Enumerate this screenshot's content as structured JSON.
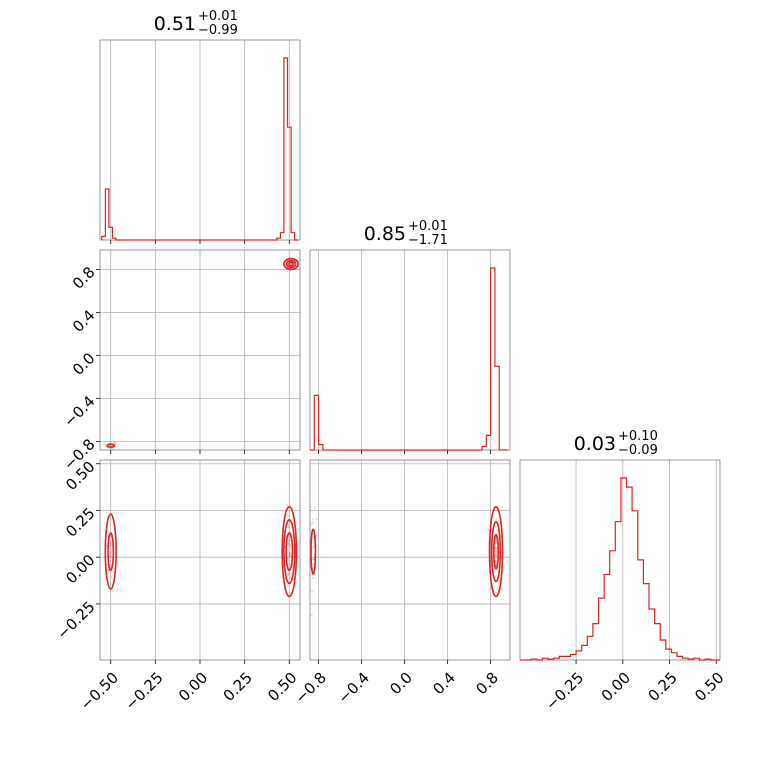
{
  "chart_data": {
    "type": "corner",
    "color": "#d62728",
    "grid": true,
    "parameters": [
      {
        "title_value": "0.51",
        "title_plus": "+0.01",
        "title_minus": "−0.99",
        "range": [
          -0.56,
          0.56
        ]
      },
      {
        "title_value": "0.85",
        "title_plus": "+0.01",
        "title_minus": "−1.71",
        "range": [
          -0.88,
          0.98
        ]
      },
      {
        "title_value": "0.03",
        "title_plus": "+0.10",
        "title_minus": "−0.09",
        "range": [
          -0.55,
          0.52
        ]
      }
    ],
    "axis_ticks": {
      "x0": {
        "values": [
          -0.5,
          -0.25,
          0.0,
          0.25,
          0.5
        ],
        "labels": [
          "−0.50",
          "−0.25",
          "0.00",
          "0.25",
          "0.50"
        ]
      },
      "x1": {
        "values": [
          -0.8,
          -0.4,
          0.0,
          0.4,
          0.8
        ],
        "labels": [
          "−0.8",
          "−0.4",
          "0.0",
          "0.4",
          "0.8"
        ]
      },
      "x2": {
        "values": [
          -0.25,
          0.0,
          0.25,
          0.5
        ],
        "labels": [
          "−0.25",
          "0.00",
          "0.25",
          "0.50"
        ]
      },
      "y1": {
        "values": [
          0.8,
          0.4,
          0.0,
          -0.4,
          -0.8
        ],
        "labels": [
          "0.8",
          "0.4",
          "0.0",
          "−0.4",
          "−0.8"
        ]
      },
      "y2": {
        "values": [
          0.5,
          0.25,
          0.0,
          -0.25
        ],
        "labels": [
          "0.50",
          "0.25",
          "0.00",
          "−0.25"
        ]
      }
    },
    "histograms": [
      {
        "param": 0,
        "edges": [
          -0.55,
          -0.53,
          -0.51,
          -0.49,
          -0.47,
          -0.45,
          -0.43,
          0.43,
          0.45,
          0.47,
          0.49,
          0.51,
          0.53,
          0.55
        ],
        "counts": [
          0.02,
          0.28,
          0.07,
          0.01,
          0.0,
          0.0,
          0.0,
          0.01,
          0.04,
          1.0,
          0.62,
          0.04,
          0.0
        ]
      },
      {
        "param": 1,
        "edges": [
          -0.88,
          -0.84,
          -0.8,
          -0.76,
          0.64,
          0.68,
          0.72,
          0.76,
          0.8,
          0.84,
          0.88,
          0.92,
          0.96
        ],
        "counts": [
          0.0,
          0.3,
          0.03,
          0.0,
          0.0,
          0.0,
          0.02,
          0.08,
          1.0,
          0.46,
          0.0,
          0.0
        ]
      },
      {
        "param": 2,
        "edges": [
          -0.55,
          -0.52,
          -0.49,
          -0.46,
          -0.43,
          -0.4,
          -0.37,
          -0.34,
          -0.31,
          -0.28,
          -0.25,
          -0.22,
          -0.19,
          -0.16,
          -0.13,
          -0.1,
          -0.07,
          -0.04,
          -0.01,
          0.02,
          0.05,
          0.08,
          0.11,
          0.14,
          0.17,
          0.2,
          0.23,
          0.26,
          0.29,
          0.32,
          0.35,
          0.38,
          0.41,
          0.44,
          0.47,
          0.5,
          0.52
        ],
        "counts": [
          0.0,
          0.0,
          0.005,
          0.0,
          0.01,
          0.005,
          0.01,
          0.02,
          0.02,
          0.03,
          0.05,
          0.08,
          0.13,
          0.2,
          0.34,
          0.47,
          0.6,
          0.76,
          1.0,
          0.95,
          0.82,
          0.55,
          0.42,
          0.28,
          0.2,
          0.11,
          0.06,
          0.04,
          0.02,
          0.01,
          0.005,
          0.01,
          0.0,
          0.005,
          0.0,
          0.0
        ]
      }
    ],
    "pairs": [
      {
        "x_param": 0,
        "y_param": 1,
        "clusters": [
          {
            "center": [
              0.51,
              0.85
            ],
            "spread": [
              0.018,
              0.025
            ],
            "n": 40,
            "contours": [
              [
                0.04,
                0.05
              ],
              [
                0.025,
                0.032
              ],
              [
                0.012,
                0.016
              ]
            ]
          },
          {
            "center": [
              -0.5,
              -0.84
            ],
            "spread": [
              0.015,
              0.015
            ],
            "n": 20,
            "contours": [
              [
                0.02,
                0.012
              ]
            ]
          }
        ]
      },
      {
        "x_param": 0,
        "y_param": 2,
        "clusters": [
          {
            "center": [
              0.5,
              0.03
            ],
            "spread": [
              0.015,
              0.1
            ],
            "n": 70,
            "contours": [
              [
                0.04,
                0.24
              ],
              [
                0.03,
                0.17
              ],
              [
                0.018,
                0.1
              ]
            ]
          },
          {
            "center": [
              -0.5,
              0.03
            ],
            "spread": [
              0.012,
              0.08
            ],
            "n": 35,
            "contours": [
              [
                0.03,
                0.2
              ],
              [
                0.015,
                0.1
              ]
            ]
          }
        ]
      },
      {
        "x_param": 1,
        "y_param": 2,
        "clusters": [
          {
            "center": [
              0.85,
              0.03
            ],
            "spread": [
              0.02,
              0.1
            ],
            "n": 70,
            "contours": [
              [
                0.06,
                0.24
              ],
              [
                0.04,
                0.16
              ],
              [
                0.02,
                0.09
              ]
            ]
          },
          {
            "center": [
              -0.85,
              0.03
            ],
            "spread": [
              0.015,
              0.1
            ],
            "n": 35,
            "contours": [
              [
                0.02,
                0.12
              ]
            ]
          }
        ]
      }
    ]
  }
}
